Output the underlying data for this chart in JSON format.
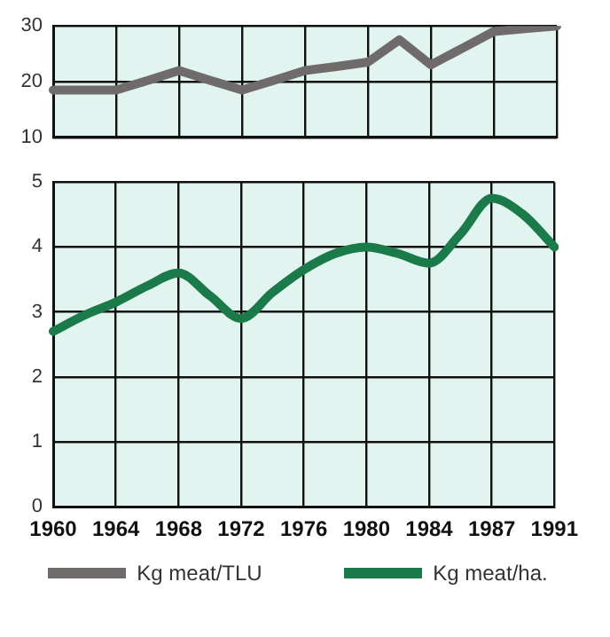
{
  "chart_data": [
    {
      "type": "line",
      "categories": [
        "1960",
        null,
        "1964",
        null,
        "1968",
        null,
        "1972",
        null,
        "1976",
        null,
        "1980",
        null,
        "1984",
        null,
        "1987",
        null,
        "1991"
      ],
      "ylim": [
        10,
        30
      ],
      "yticks": [
        10,
        20,
        30
      ],
      "grid": true,
      "tick_labels": "y",
      "legend": "bottom",
      "series": [
        {
          "name": "Kg meat/TLU",
          "color": "#6f6b6b",
          "values": [
            18.5,
            18.5,
            18.5,
            20.2,
            22,
            20.2,
            18.5,
            20.2,
            22,
            22.7,
            23.5,
            27.5,
            23,
            26,
            29,
            29.5,
            30
          ]
        }
      ]
    },
    {
      "type": "line",
      "categories": [
        "1960",
        null,
        "1964",
        null,
        "1968",
        null,
        "1972",
        null,
        "1976",
        null,
        "1980",
        null,
        "1984",
        null,
        "1987",
        null,
        "1991"
      ],
      "ylim": [
        0,
        5
      ],
      "yticks": [
        0,
        1,
        2,
        3,
        4,
        5
      ],
      "grid": true,
      "legend": "bottom",
      "series": [
        {
          "name": "Kg meat/ha.",
          "color": "#1b7a49",
          "values": [
            2.7,
            2.95,
            3.15,
            3.4,
            3.6,
            3.25,
            2.9,
            3.3,
            3.65,
            3.9,
            4.0,
            3.9,
            3.75,
            4.2,
            4.75,
            4.5,
            4.0
          ]
        }
      ]
    }
  ]
}
